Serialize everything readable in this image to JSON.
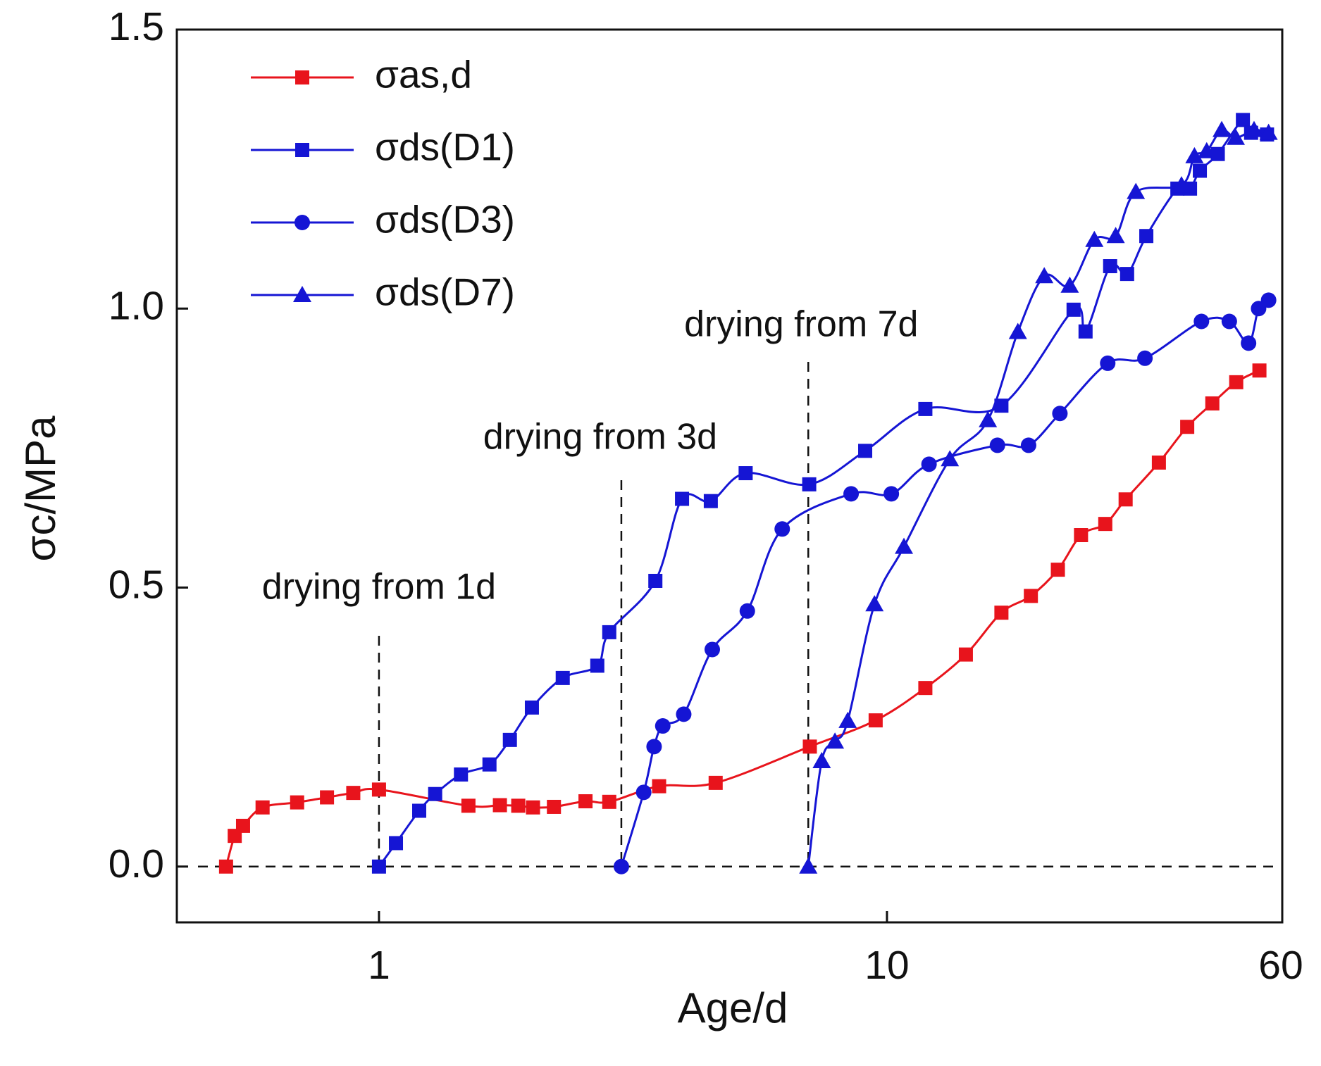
{
  "chart_data": {
    "type": "line",
    "ylabel": "σc/MPa",
    "xlabel": "Age/d",
    "xscale": "log",
    "xlim": [
      0.4,
      60
    ],
    "xticks": [
      1,
      10,
      60
    ],
    "ylim": [
      -0.1,
      1.5
    ],
    "yticks": [
      {
        "value": 0,
        "label": "0.0"
      },
      0.5,
      {
        "value": 1,
        "label": "1.0"
      },
      1.5
    ],
    "legend": "upper left",
    "series": [
      {
        "name": "σas,d",
        "color": "#e8141c",
        "marker": "square",
        "x": [
          0.5,
          0.52,
          0.54,
          0.59,
          0.69,
          0.79,
          0.89,
          1,
          1.5,
          1.73,
          1.88,
          2.01,
          2.21,
          2.55,
          2.84,
          3.56,
          4.6,
          7.05,
          9.5,
          11.9,
          14.3,
          16.8,
          19.2,
          21.7,
          24.1,
          26.9,
          29.5,
          34.3,
          39,
          43.7,
          48.7,
          54.1
        ],
        "values": [
          0,
          0.055,
          0.073,
          0.106,
          0.115,
          0.124,
          0.132,
          0.138,
          0.109,
          0.11,
          0.109,
          0.106,
          0.107,
          0.117,
          0.116,
          0.144,
          0.15,
          0.215,
          0.262,
          0.32,
          0.38,
          0.455,
          0.485,
          0.532,
          0.594,
          0.614,
          0.658,
          0.724,
          0.788,
          0.83,
          0.868,
          0.889
        ]
      },
      {
        "name": "σds(D1)",
        "color": "#1515d4",
        "marker": "square",
        "x": [
          1,
          1.08,
          1.2,
          1.29,
          1.45,
          1.65,
          1.81,
          2,
          2.3,
          2.69,
          2.84,
          3.5,
          3.95,
          4.5,
          5.27,
          7.03,
          9.06,
          11.9,
          16.8,
          23.3,
          24.6,
          27.5,
          29.7,
          32.4,
          37.3,
          39.5,
          41.3,
          44.8,
          50.2,
          52.1,
          56
        ],
        "values": [
          0,
          0.042,
          0.1,
          0.13,
          0.165,
          0.183,
          0.227,
          0.285,
          0.338,
          0.36,
          0.42,
          0.512,
          0.659,
          0.655,
          0.705,
          0.685,
          0.745,
          0.82,
          0.826,
          0.998,
          0.959,
          1.076,
          1.062,
          1.13,
          1.215,
          1.215,
          1.247,
          1.277,
          1.338,
          1.315,
          1.312
        ]
      },
      {
        "name": "σds(D3)",
        "color": "#1515d4",
        "marker": "circle",
        "x": [
          3,
          3.32,
          3.48,
          3.62,
          3.98,
          4.53,
          5.31,
          6.22,
          8.5,
          10.2,
          12.1,
          16.5,
          19,
          21.9,
          27.2,
          32.2,
          41.6,
          47.2,
          51.5,
          53.9,
          56.4
        ],
        "values": [
          0,
          0.133,
          0.215,
          0.252,
          0.273,
          0.389,
          0.458,
          0.605,
          0.668,
          0.668,
          0.721,
          0.755,
          0.755,
          0.812,
          0.902,
          0.911,
          0.977,
          0.977,
          0.938,
          1.0,
          1.015
        ]
      },
      {
        "name": "σds(D7)",
        "color": "#1515d4",
        "marker": "triangle",
        "x": [
          7,
          7.44,
          7.9,
          8.37,
          9.45,
          10.8,
          13.3,
          15.8,
          18.1,
          20.4,
          22.9,
          25.6,
          28.2,
          30.9,
          38,
          40.3,
          42.6,
          45.6,
          48.6,
          52.8,
          56.4
        ],
        "values": [
          0,
          0.189,
          0.224,
          0.261,
          0.47,
          0.573,
          0.73,
          0.8,
          0.958,
          1.058,
          1.041,
          1.123,
          1.13,
          1.209,
          1.221,
          1.273,
          1.282,
          1.32,
          1.306,
          1.32,
          1.315
        ]
      }
    ],
    "annotations": [
      {
        "text": "drying from 1d",
        "x": 1
      },
      {
        "text": "drying from 3d",
        "x": 3
      },
      {
        "text": "drying from 7d",
        "x": 7
      }
    ]
  }
}
